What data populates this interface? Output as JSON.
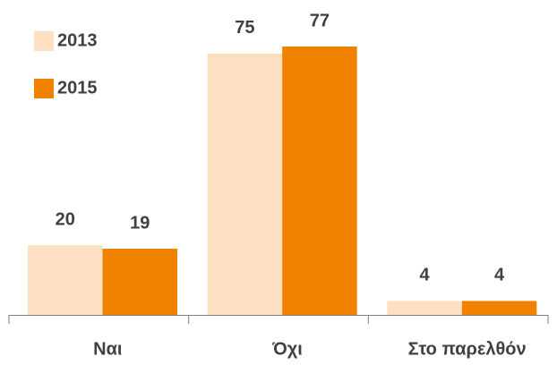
{
  "chart_data": {
    "type": "bar",
    "categories": [
      "Ναι",
      "Όχι",
      "Στο παρελθόν"
    ],
    "series": [
      {
        "name": "2013",
        "color": "#fde0c2",
        "values": [
          20,
          75,
          4
        ]
      },
      {
        "name": "2015",
        "color": "#f08200",
        "values": [
          19,
          77,
          4
        ]
      }
    ],
    "legend": "top-left"
  }
}
